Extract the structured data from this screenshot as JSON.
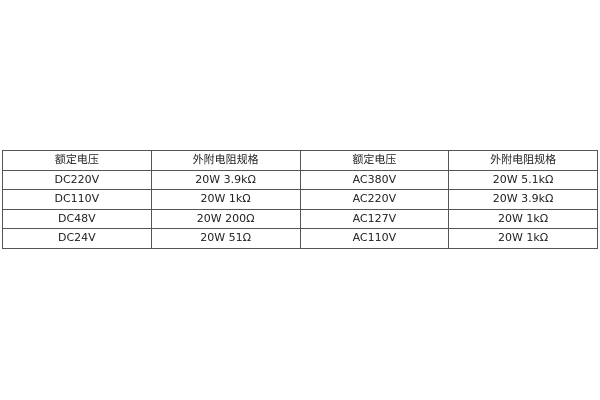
{
  "table": {
    "headers": [
      "额定电压",
      "外附电阻规格",
      "额定电压",
      "外附电阻规格"
    ],
    "rows": [
      [
        "DC220V",
        "20W 3.9kΩ",
        "AC380V",
        "20W 5.1kΩ"
      ],
      [
        "DC110V",
        "20W 1kΩ",
        "AC220V",
        "20W 3.9kΩ"
      ],
      [
        "DC48V",
        "20W 200Ω",
        "AC127V",
        "20W 1kΩ"
      ],
      [
        "DC24V",
        "20W 51Ω",
        "AC110V",
        "20W 1kΩ"
      ]
    ]
  }
}
